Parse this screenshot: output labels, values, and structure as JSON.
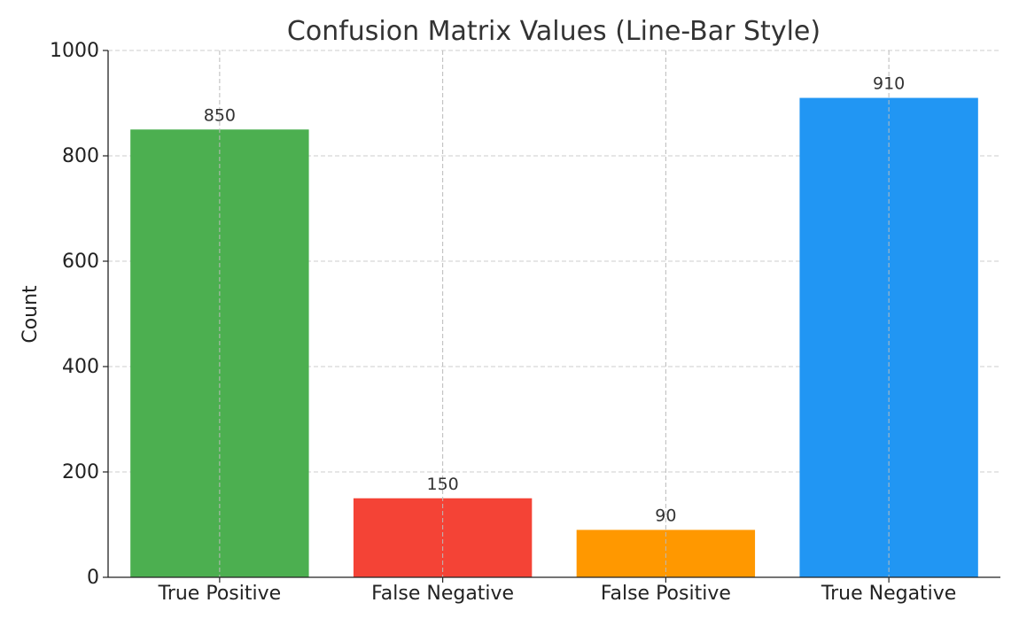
{
  "chart_data": {
    "type": "bar",
    "title": "Confusion Matrix Values (Line-Bar Style)",
    "xlabel": "",
    "ylabel": "Count",
    "categories": [
      "True Positive",
      "False Negative",
      "False Positive",
      "True Negative"
    ],
    "values": [
      850,
      150,
      90,
      910
    ],
    "value_labels": [
      "850",
      "150",
      "90",
      "910"
    ],
    "colors": [
      "#4caf50",
      "#f44336",
      "#ff9800",
      "#2196f3"
    ],
    "ylim": [
      0,
      1000
    ],
    "yticks": [
      0,
      200,
      400,
      600,
      800,
      1000
    ],
    "ytick_labels": [
      "0",
      "200",
      "400",
      "600",
      "800",
      "1000"
    ],
    "grid": true,
    "grid_style": "dashed"
  }
}
